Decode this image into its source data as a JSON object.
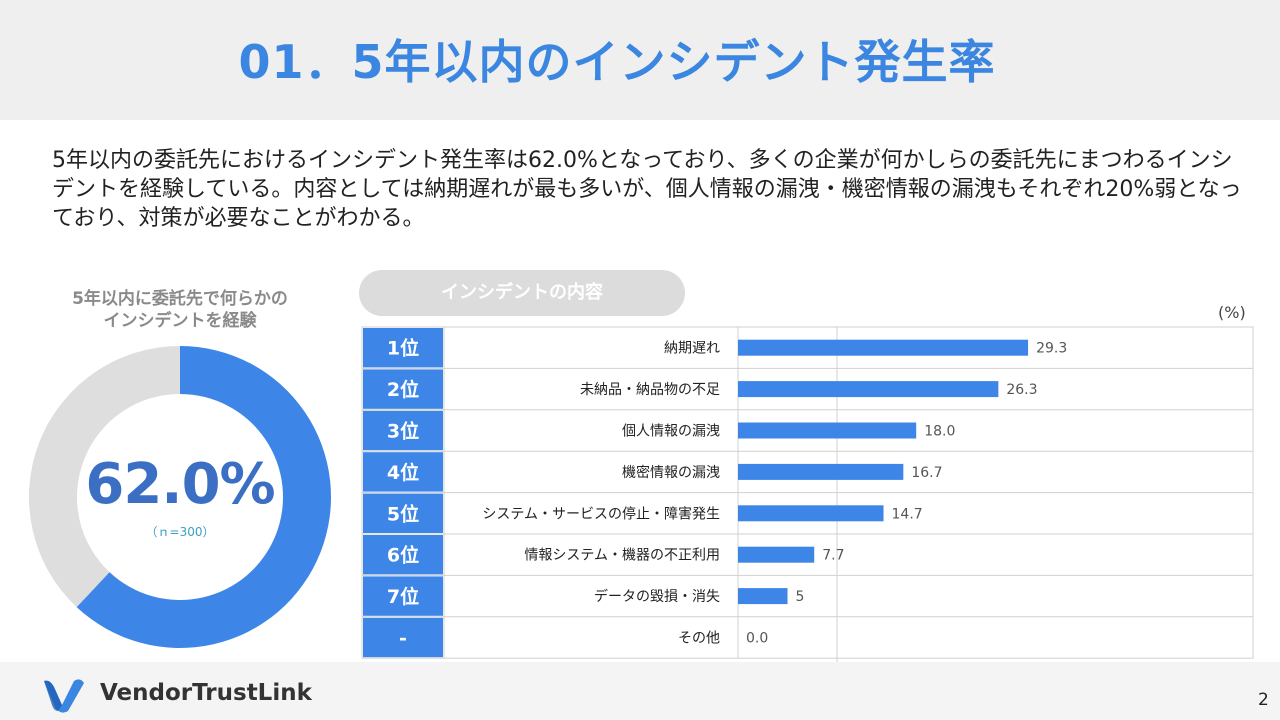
{
  "title": "01．5年以内のインシデント発生率",
  "description": "5年以内の委託先におけるインシデント発生率は62.0%となっており、多くの企業が何かしらの委託先にまつわるインシデントを経験している。内容としては納期遅れが最も多いが、個人情報の漏洩・機密情報の漏洩もそれぞれ20%弱となっており、対策が必要なことがわかる。",
  "donut": {
    "title_line1": "5年以内に委託先で何らかの",
    "title_line2": "インシデントを経験",
    "value_label": "62.0%",
    "n_label": "（ｎ=300）",
    "value": 62.0,
    "color_value": "#3d86e8",
    "color_rest": "#dedede"
  },
  "pill_label": "インシデントの内容",
  "unit_label": "(%)",
  "chart_data": [
    {
      "type": "pie",
      "title": "5年以内に委託先で何らかのインシデントを経験",
      "values": [
        62.0,
        38.0
      ]
    },
    {
      "type": "bar",
      "orientation": "horizontal",
      "title": "インシデントの内容",
      "ylabel": "(%)",
      "ranks": [
        "1位",
        "2位",
        "3位",
        "4位",
        "5位",
        "6位",
        "7位",
        "-"
      ],
      "categories": [
        "納期遅れ",
        "未納品・納品物の不足",
        "個人情報の漏洩",
        "機密情報の漏洩",
        "システム・サービスの停止・障害発生",
        "情報システム・機器の不正利用",
        "データの毀損・消失",
        "その他"
      ],
      "values": [
        29.3,
        26.3,
        18.0,
        16.7,
        14.7,
        7.7,
        5,
        0.0
      ],
      "value_labels": [
        "29.3",
        "26.3",
        "18.0",
        "16.7",
        "14.7",
        "7.7",
        "5",
        "0.0"
      ],
      "xlim": [
        0,
        50
      ],
      "grid": true,
      "colors": {
        "bar": "#3d86e8",
        "rank_cell": "#3d86e8",
        "grid": "#d0d0d0"
      }
    }
  ],
  "footer": {
    "brand": "VendorTrustLink",
    "page_number": "2"
  }
}
